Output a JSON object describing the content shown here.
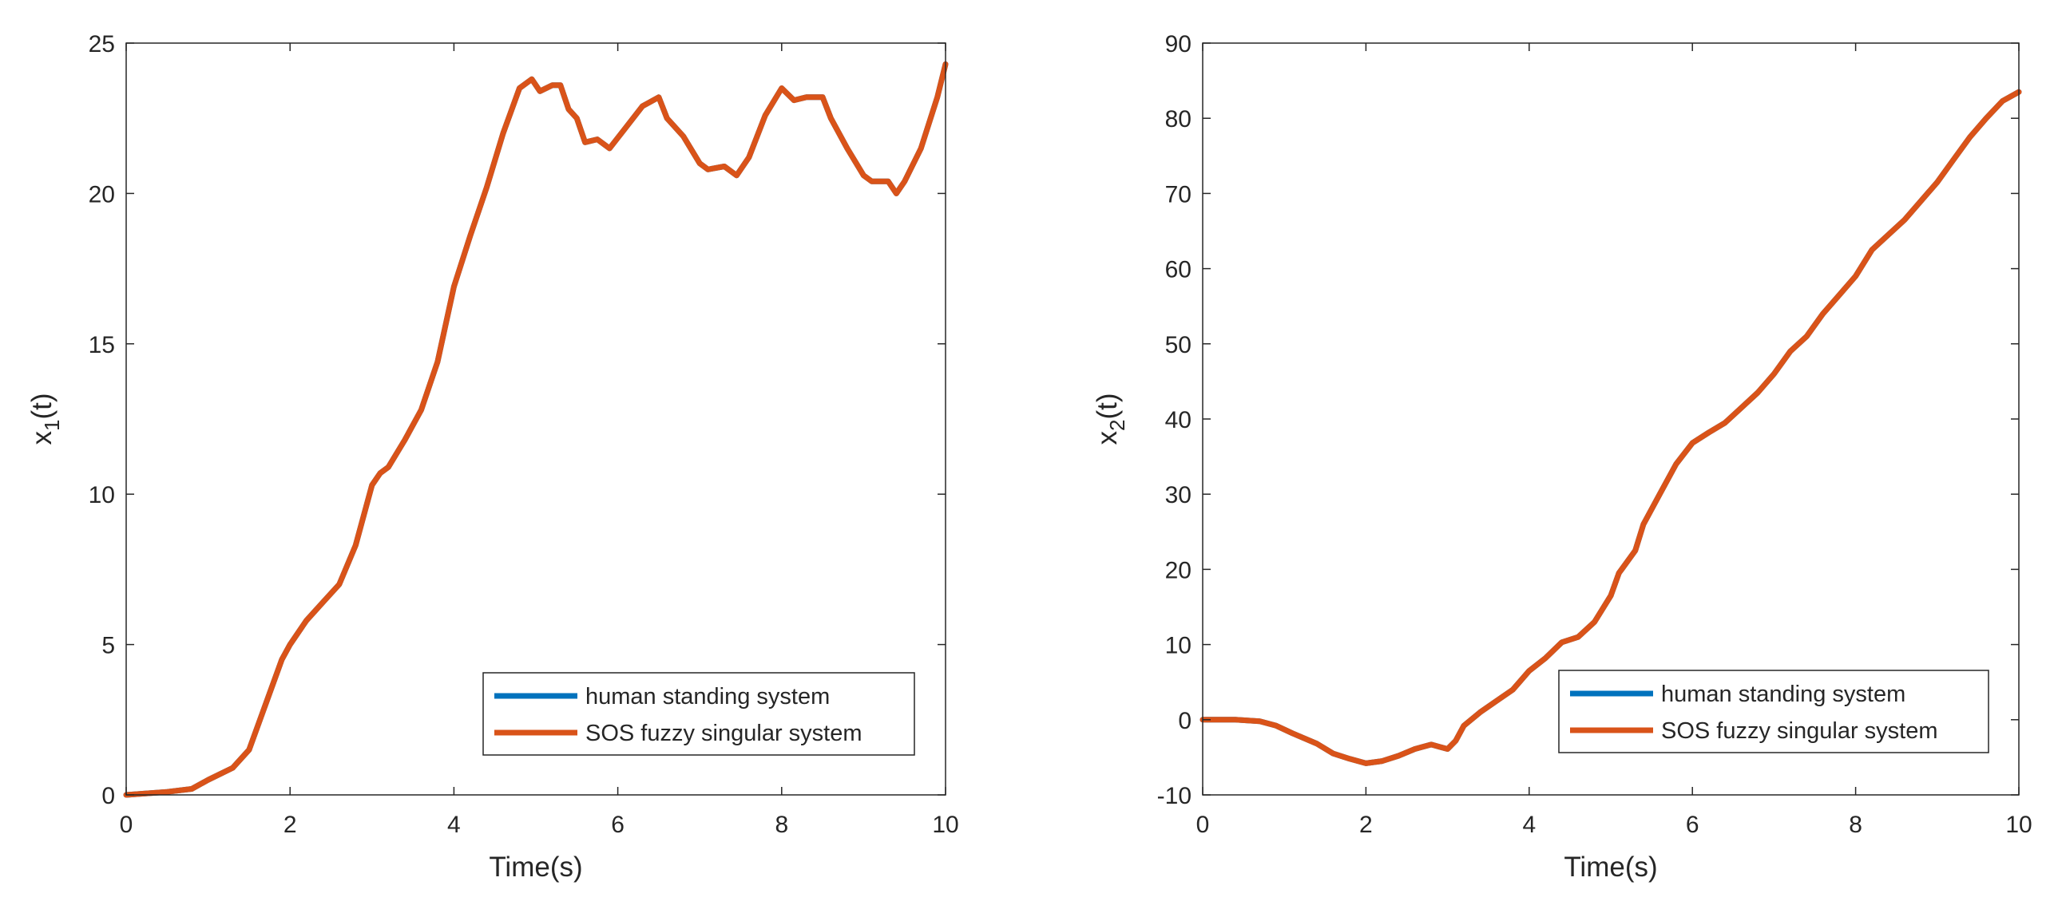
{
  "chart_data": [
    {
      "type": "line",
      "xlabel": "Time(s)",
      "ylabel_base": "x",
      "ylabel_sub": "1",
      "ylabel_suffix": "(t)",
      "xlim": [
        0,
        10
      ],
      "ylim": [
        0,
        25
      ],
      "xticks": [
        0,
        2,
        4,
        6,
        8,
        10
      ],
      "yticks": [
        0,
        5,
        10,
        15,
        20,
        25
      ],
      "grid": false,
      "legend_position": "bottom-right",
      "series": [
        {
          "name": "human standing system",
          "color": "#0072BD",
          "x": [
            0,
            0.5,
            0.8,
            1.0,
            1.3,
            1.5,
            1.7,
            1.9,
            2.0,
            2.2,
            2.4,
            2.6,
            2.8,
            3.0,
            3.1,
            3.2,
            3.4,
            3.6,
            3.8,
            4.0,
            4.2,
            4.4,
            4.6,
            4.8,
            4.95,
            5.05,
            5.2,
            5.3,
            5.4,
            5.5,
            5.6,
            5.75,
            5.9,
            6.1,
            6.3,
            6.5,
            6.6,
            6.8,
            7.0,
            7.1,
            7.3,
            7.45,
            7.6,
            7.8,
            8.0,
            8.15,
            8.3,
            8.5,
            8.6,
            8.8,
            9.0,
            9.1,
            9.3,
            9.4,
            9.5,
            9.7,
            9.9,
            10.0
          ],
          "y": [
            0,
            0.1,
            0.2,
            0.5,
            0.9,
            1.5,
            3.0,
            4.5,
            5.0,
            5.8,
            6.4,
            7.0,
            8.3,
            10.3,
            10.7,
            10.9,
            11.8,
            12.8,
            14.4,
            16.9,
            18.6,
            20.2,
            22.0,
            23.5,
            23.8,
            23.4,
            23.6,
            23.6,
            22.8,
            22.5,
            21.7,
            21.8,
            21.5,
            22.2,
            22.9,
            23.2,
            22.5,
            21.9,
            21.0,
            20.8,
            20.9,
            20.6,
            21.2,
            22.6,
            23.5,
            23.1,
            23.2,
            23.2,
            22.5,
            21.5,
            20.6,
            20.4,
            20.4,
            20.0,
            20.4,
            21.5,
            23.2,
            24.3
          ]
        },
        {
          "name": "SOS fuzzy singular system",
          "color": "#D95319",
          "x": [
            0,
            0.5,
            0.8,
            1.0,
            1.3,
            1.5,
            1.7,
            1.9,
            2.0,
            2.2,
            2.4,
            2.6,
            2.8,
            3.0,
            3.1,
            3.2,
            3.4,
            3.6,
            3.8,
            4.0,
            4.2,
            4.4,
            4.6,
            4.8,
            4.95,
            5.05,
            5.2,
            5.3,
            5.4,
            5.5,
            5.6,
            5.75,
            5.9,
            6.1,
            6.3,
            6.5,
            6.6,
            6.8,
            7.0,
            7.1,
            7.3,
            7.45,
            7.6,
            7.8,
            8.0,
            8.15,
            8.3,
            8.5,
            8.6,
            8.8,
            9.0,
            9.1,
            9.3,
            9.4,
            9.5,
            9.7,
            9.9,
            10.0
          ],
          "y": [
            0,
            0.1,
            0.2,
            0.5,
            0.9,
            1.5,
            3.0,
            4.5,
            5.0,
            5.8,
            6.4,
            7.0,
            8.3,
            10.3,
            10.7,
            10.9,
            11.8,
            12.8,
            14.4,
            16.9,
            18.6,
            20.2,
            22.0,
            23.5,
            23.8,
            23.4,
            23.6,
            23.6,
            22.8,
            22.5,
            21.7,
            21.8,
            21.5,
            22.2,
            22.9,
            23.2,
            22.5,
            21.9,
            21.0,
            20.8,
            20.9,
            20.6,
            21.2,
            22.6,
            23.5,
            23.1,
            23.2,
            23.2,
            22.5,
            21.5,
            20.6,
            20.4,
            20.4,
            20.0,
            20.4,
            21.5,
            23.2,
            24.3
          ]
        }
      ]
    },
    {
      "type": "line",
      "xlabel": "Time(s)",
      "ylabel_base": "x",
      "ylabel_sub": "2",
      "ylabel_suffix": "(t)",
      "xlim": [
        0,
        10
      ],
      "ylim": [
        -10,
        90
      ],
      "xticks": [
        0,
        2,
        4,
        6,
        8,
        10
      ],
      "yticks": [
        -10,
        0,
        10,
        20,
        30,
        40,
        50,
        60,
        70,
        80,
        90
      ],
      "grid": false,
      "legend_position": "bottom-right",
      "series": [
        {
          "name": "human standing system",
          "color": "#0072BD",
          "x": [
            0,
            0.4,
            0.7,
            0.9,
            1.1,
            1.4,
            1.6,
            1.8,
            2.0,
            2.2,
            2.4,
            2.6,
            2.8,
            2.9,
            3.0,
            3.1,
            3.2,
            3.4,
            3.6,
            3.8,
            4.0,
            4.2,
            4.4,
            4.6,
            4.8,
            5.0,
            5.1,
            5.3,
            5.4,
            5.6,
            5.8,
            6.0,
            6.2,
            6.4,
            6.6,
            6.8,
            7.0,
            7.2,
            7.4,
            7.6,
            7.8,
            8.0,
            8.2,
            8.4,
            8.6,
            8.8,
            9.0,
            9.2,
            9.4,
            9.6,
            9.8,
            10.0
          ],
          "y": [
            0,
            0,
            -0.2,
            -0.8,
            -1.8,
            -3.2,
            -4.5,
            -5.2,
            -5.8,
            -5.5,
            -4.8,
            -3.9,
            -3.3,
            -3.6,
            -3.9,
            -2.8,
            -0.8,
            1.0,
            2.5,
            4.0,
            6.5,
            8.2,
            10.3,
            11.0,
            13.0,
            16.5,
            19.5,
            22.5,
            26.0,
            30.0,
            34.0,
            36.8,
            38.2,
            39.5,
            41.5,
            43.5,
            46.0,
            49.0,
            51.0,
            54.0,
            56.5,
            59.0,
            62.5,
            64.5,
            66.5,
            69.0,
            71.5,
            74.5,
            77.5,
            80.0,
            82.3,
            83.5
          ]
        },
        {
          "name": "SOS fuzzy singular system",
          "color": "#D95319",
          "x": [
            0,
            0.4,
            0.7,
            0.9,
            1.1,
            1.4,
            1.6,
            1.8,
            2.0,
            2.2,
            2.4,
            2.6,
            2.8,
            2.9,
            3.0,
            3.1,
            3.2,
            3.4,
            3.6,
            3.8,
            4.0,
            4.2,
            4.4,
            4.6,
            4.8,
            5.0,
            5.1,
            5.3,
            5.4,
            5.6,
            5.8,
            6.0,
            6.2,
            6.4,
            6.6,
            6.8,
            7.0,
            7.2,
            7.4,
            7.6,
            7.8,
            8.0,
            8.2,
            8.4,
            8.6,
            8.8,
            9.0,
            9.2,
            9.4,
            9.6,
            9.8,
            10.0
          ],
          "y": [
            0,
            0,
            -0.2,
            -0.8,
            -1.8,
            -3.2,
            -4.5,
            -5.2,
            -5.8,
            -5.5,
            -4.8,
            -3.9,
            -3.3,
            -3.6,
            -3.9,
            -2.8,
            -0.8,
            1.0,
            2.5,
            4.0,
            6.5,
            8.2,
            10.3,
            11.0,
            13.0,
            16.5,
            19.5,
            22.5,
            26.0,
            30.0,
            34.0,
            36.8,
            38.2,
            39.5,
            41.5,
            43.5,
            46.0,
            49.0,
            51.0,
            54.0,
            56.5,
            59.0,
            62.5,
            64.5,
            66.5,
            69.0,
            71.5,
            74.5,
            77.5,
            80.0,
            82.3,
            83.5
          ]
        }
      ]
    }
  ]
}
